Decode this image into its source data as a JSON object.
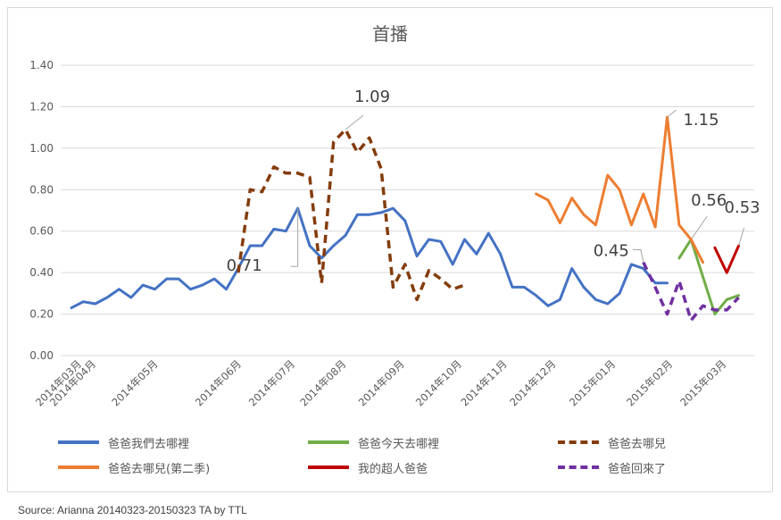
{
  "chart_data": {
    "type": "line",
    "title": "首播",
    "ylim": [
      0,
      1.4
    ],
    "yticks": [
      "0.00",
      "0.20",
      "0.40",
      "0.60",
      "0.80",
      "1.00",
      "1.20",
      "1.40"
    ],
    "x_unit": "week index",
    "xticks": [
      {
        "label": "2014年03月",
        "at": 0.9
      },
      {
        "label": "2014年04月",
        "at": 2.1
      },
      {
        "label": "2014年05月",
        "at": 7.3
      },
      {
        "label": "2014年06月",
        "at": 14.3
      },
      {
        "label": "2014年07月",
        "at": 18.8
      },
      {
        "label": "2014年08月",
        "at": 23.1
      },
      {
        "label": "2014年09月",
        "at": 28
      },
      {
        "label": "2014年10月",
        "at": 32.8
      },
      {
        "label": "2014年11月",
        "at": 36.6
      },
      {
        "label": "2014年12月",
        "at": 40.7
      },
      {
        "label": "2015年01月",
        "at": 45.7
      },
      {
        "label": "2015年02月",
        "at": 50.5
      },
      {
        "label": "2015年03月",
        "at": 55
      }
    ],
    "grid": true,
    "legend": "bottom",
    "series": [
      {
        "name": "爸爸我們去哪裡",
        "color": "#4472c4",
        "dashed": false,
        "start": 0,
        "values": [
          0.23,
          0.26,
          0.25,
          0.28,
          0.32,
          0.28,
          0.34,
          0.32,
          0.37,
          0.37,
          0.32,
          0.34,
          0.37,
          0.32,
          0.42,
          0.53,
          0.53,
          0.61,
          0.6,
          0.71,
          0.53,
          0.47,
          0.53,
          0.58,
          0.68,
          0.68,
          0.69,
          0.71,
          0.65,
          0.48,
          0.56,
          0.55,
          0.44,
          0.56,
          0.49,
          0.59,
          0.49,
          0.33,
          0.33,
          0.29,
          0.24,
          0.27,
          0.42,
          0.33,
          0.27,
          0.25,
          0.3,
          0.44,
          0.42,
          0.35,
          0.35
        ],
        "label": {
          "index": 19,
          "text": "0.71"
        }
      },
      {
        "name": "爸爸今天去哪裡",
        "color": "#70ad47",
        "dashed": false,
        "start": 51,
        "values": [
          0.47,
          0.56,
          0.38,
          0.2,
          0.27,
          0.29
        ],
        "label": {
          "index": 52,
          "text": "0.56"
        }
      },
      {
        "name": "爸爸去哪兒",
        "color": "#843c0c",
        "dashed": true,
        "start": 14,
        "values": [
          0.4,
          0.8,
          0.79,
          0.91,
          0.88,
          0.88,
          0.86,
          0.35,
          1.03,
          1.09,
          0.98,
          1.05,
          0.9,
          0.33,
          0.44,
          0.27,
          0.41,
          0.37,
          0.32,
          0.34
        ],
        "label": {
          "index": 23,
          "text": "1.09"
        }
      },
      {
        "name": "爸爸去哪兒(第二季)",
        "color": "#ed7d31",
        "dashed": false,
        "start": 39,
        "values": [
          0.78,
          0.75,
          0.64,
          0.76,
          0.68,
          0.63,
          0.87,
          0.8,
          0.63,
          0.78,
          0.62,
          1.15,
          0.63,
          0.56,
          0.45
        ],
        "label": {
          "index": 50,
          "text": "1.15"
        }
      },
      {
        "name": "我的超人爸爸",
        "color": "#c00000",
        "dashed": false,
        "start": 54,
        "values": [
          0.52,
          0.4,
          0.53
        ],
        "label": {
          "index": 56,
          "text": "0.53"
        }
      },
      {
        "name": "爸爸回來了",
        "color": "#7030a0",
        "dashed": true,
        "start": 48,
        "values": [
          0.45,
          0.33,
          0.2,
          0.36,
          0.17,
          0.24,
          0.22,
          0.22,
          0.28
        ],
        "label": {
          "index": 48,
          "text": "0.45"
        }
      }
    ]
  },
  "source": "Source: Arianna 20140323-20150323    TA by TTL"
}
